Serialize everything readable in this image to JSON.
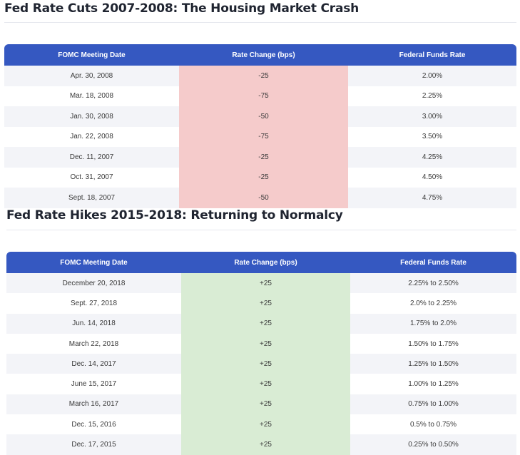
{
  "cuts": {
    "title": "Fed Rate Cuts 2007-2008: The Housing Market Crash",
    "headers": [
      "FOMC Meeting Date",
      "Rate Change (bps)",
      "Federal Funds Rate"
    ],
    "rows": [
      [
        "Apr. 30, 2008",
        "-25",
        "2.00%"
      ],
      [
        "Mar. 18, 2008",
        "-75",
        "2.25%"
      ],
      [
        "Jan. 30, 2008",
        "-50",
        "3.00%"
      ],
      [
        "Jan. 22, 2008",
        "-75",
        "3.50%"
      ],
      [
        "Dec. 11, 2007",
        "-25",
        "4.25%"
      ],
      [
        "Oct. 31, 2007",
        "-25",
        "4.50%"
      ],
      [
        "Sept. 18, 2007",
        "-50",
        "4.75%"
      ]
    ]
  },
  "hikes": {
    "title": "Fed Rate Hikes 2015-2018: Returning to Normalcy",
    "headers": [
      "FOMC Meeting Date",
      "Rate Change (bps)",
      "Federal Funds Rate"
    ],
    "rows": [
      [
        "December 20, 2018",
        "+25",
        "2.25% to 2.50%"
      ],
      [
        "Sept. 27, 2018",
        "+25",
        "2.0% to 2.25%"
      ],
      [
        "Jun. 14, 2018",
        "+25",
        "1.75% to 2.0%"
      ],
      [
        "March 22, 2018",
        "+25",
        "1.50% to 1.75%"
      ],
      [
        "Dec. 14, 2017",
        "+25",
        "1.25% to 1.50%"
      ],
      [
        "June 15, 2017",
        "+25",
        "1.00% to 1.25%"
      ],
      [
        "March 16, 2017",
        "+25",
        "0.75% to 1.00%"
      ],
      [
        "Dec. 15, 2016",
        "+25",
        "0.5% to 0.75%"
      ],
      [
        "Dec. 17, 2015",
        "+25",
        "0.25% to 0.50%"
      ]
    ]
  },
  "colors": {
    "header_bg": "#3558c1",
    "cut_highlight": "#f5cbcb",
    "hike_highlight": "#d9ecd4",
    "stripe": "#f3f4f8"
  }
}
